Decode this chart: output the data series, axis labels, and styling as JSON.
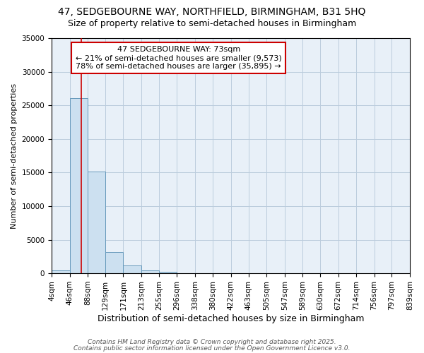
{
  "title1": "47, SEDGEBOURNE WAY, NORTHFIELD, BIRMINGHAM, B31 5HQ",
  "title2": "Size of property relative to semi-detached houses in Birmingham",
  "xlabel": "Distribution of semi-detached houses by size in Birmingham",
  "ylabel": "Number of semi-detached properties",
  "bin_edges": [
    4,
    46,
    88,
    129,
    171,
    213,
    255,
    296,
    338,
    380,
    422,
    463,
    505,
    547,
    589,
    630,
    672,
    714,
    756,
    797,
    839
  ],
  "bin_heights": [
    400,
    26100,
    15100,
    3200,
    1200,
    400,
    200,
    50,
    20,
    10,
    5,
    5,
    3,
    2,
    2,
    1,
    1,
    1,
    1,
    1
  ],
  "bar_color": "#cce0f0",
  "bar_edge_color": "#6699bb",
  "property_size": 73,
  "property_label": "47 SEDGEBOURNE WAY: 73sqm",
  "pct_smaller": 21,
  "n_smaller": 9573,
  "pct_larger": 78,
  "n_larger": 35895,
  "vline_color": "#cc0000",
  "annotation_box_color": "#cc0000",
  "ylim": [
    0,
    35000
  ],
  "yticks": [
    0,
    5000,
    10000,
    15000,
    20000,
    25000,
    30000,
    35000
  ],
  "grid_color": "#bbccdd",
  "bg_color": "#e8f0f8",
  "footer1": "Contains HM Land Registry data © Crown copyright and database right 2025.",
  "footer2": "Contains public sector information licensed under the Open Government Licence v3.0.",
  "title1_fontsize": 10,
  "title2_fontsize": 9,
  "tick_label_fontsize": 7.5,
  "ylabel_fontsize": 8,
  "xlabel_fontsize": 9,
  "annotation_fontsize": 8,
  "footer_fontsize": 6.5
}
